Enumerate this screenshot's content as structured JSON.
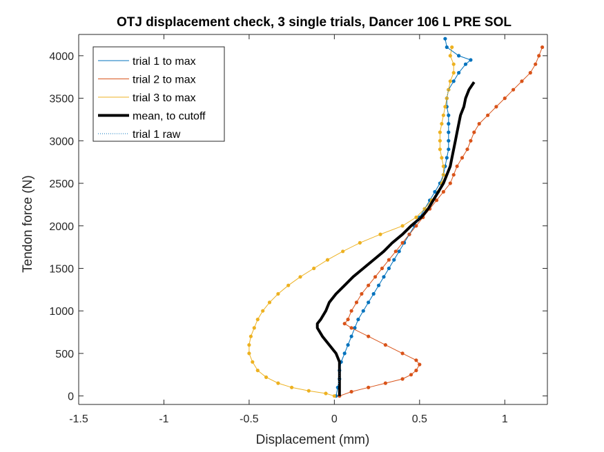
{
  "chart_data": {
    "type": "line",
    "title": "OTJ displacement check, 3 single trials, Dancer 106 L PRE SOL",
    "xlabel": "Displacement (mm)",
    "ylabel": "Tendon force (N)",
    "xlim": [
      -1.5,
      1.25
    ],
    "ylim": [
      -100,
      4250
    ],
    "xticks": [
      -1.5,
      -1,
      -0.5,
      0,
      0.5,
      1
    ],
    "xtick_labels": [
      "-1.5",
      "-1",
      "-0.5",
      "0",
      "0.5",
      "1"
    ],
    "yticks": [
      0,
      500,
      1000,
      1500,
      2000,
      2500,
      3000,
      3500,
      4000
    ],
    "ytick_labels": [
      "0",
      "500",
      "1000",
      "1500",
      "2000",
      "2500",
      "3000",
      "3500",
      "4000"
    ],
    "grid": false,
    "legend_position": "top-left",
    "series": [
      {
        "name": "trial 1 to max",
        "color": "#0072BD",
        "style": "solid-markers",
        "points": [
          [
            0.01,
            0
          ],
          [
            0.02,
            100
          ],
          [
            0.03,
            200
          ],
          [
            0.03,
            300
          ],
          [
            0.04,
            400
          ],
          [
            0.06,
            500
          ],
          [
            0.08,
            600
          ],
          [
            0.1,
            700
          ],
          [
            0.12,
            800
          ],
          [
            0.14,
            900
          ],
          [
            0.17,
            1000
          ],
          [
            0.2,
            1100
          ],
          [
            0.23,
            1200
          ],
          [
            0.26,
            1300
          ],
          [
            0.29,
            1400
          ],
          [
            0.32,
            1500
          ],
          [
            0.35,
            1600
          ],
          [
            0.38,
            1700
          ],
          [
            0.41,
            1800
          ],
          [
            0.44,
            1900
          ],
          [
            0.47,
            2000
          ],
          [
            0.5,
            2100
          ],
          [
            0.53,
            2200
          ],
          [
            0.56,
            2300
          ],
          [
            0.59,
            2400
          ],
          [
            0.62,
            2500
          ],
          [
            0.64,
            2600
          ],
          [
            0.65,
            2700
          ],
          [
            0.66,
            2800
          ],
          [
            0.67,
            2900
          ],
          [
            0.67,
            3000
          ],
          [
            0.67,
            3100
          ],
          [
            0.67,
            3200
          ],
          [
            0.67,
            3300
          ],
          [
            0.66,
            3400
          ],
          [
            0.66,
            3500
          ],
          [
            0.67,
            3600
          ],
          [
            0.7,
            3700
          ],
          [
            0.73,
            3800
          ],
          [
            0.77,
            3900
          ],
          [
            0.8,
            3950
          ],
          [
            0.73,
            4000
          ],
          [
            0.66,
            4100
          ],
          [
            0.65,
            4200
          ]
        ]
      },
      {
        "name": "trial 2 to max",
        "color": "#D95319",
        "style": "solid-markers",
        "points": [
          [
            0.03,
            0
          ],
          [
            0.1,
            50
          ],
          [
            0.2,
            100
          ],
          [
            0.3,
            150
          ],
          [
            0.4,
            200
          ],
          [
            0.45,
            250
          ],
          [
            0.48,
            300
          ],
          [
            0.5,
            370
          ],
          [
            0.48,
            420
          ],
          [
            0.4,
            500
          ],
          [
            0.3,
            600
          ],
          [
            0.2,
            700
          ],
          [
            0.1,
            800
          ],
          [
            0.06,
            850
          ],
          [
            0.08,
            900
          ],
          [
            0.1,
            1000
          ],
          [
            0.13,
            1100
          ],
          [
            0.16,
            1200
          ],
          [
            0.2,
            1300
          ],
          [
            0.24,
            1400
          ],
          [
            0.28,
            1500
          ],
          [
            0.32,
            1600
          ],
          [
            0.36,
            1700
          ],
          [
            0.4,
            1800
          ],
          [
            0.44,
            1900
          ],
          [
            0.48,
            2000
          ],
          [
            0.52,
            2100
          ],
          [
            0.56,
            2200
          ],
          [
            0.6,
            2300
          ],
          [
            0.64,
            2400
          ],
          [
            0.68,
            2500
          ],
          [
            0.7,
            2600
          ],
          [
            0.72,
            2700
          ],
          [
            0.75,
            2800
          ],
          [
            0.78,
            2900
          ],
          [
            0.8,
            3000
          ],
          [
            0.82,
            3100
          ],
          [
            0.85,
            3200
          ],
          [
            0.9,
            3300
          ],
          [
            0.95,
            3400
          ],
          [
            1.0,
            3500
          ],
          [
            1.05,
            3600
          ],
          [
            1.1,
            3700
          ],
          [
            1.15,
            3800
          ],
          [
            1.18,
            3900
          ],
          [
            1.2,
            4000
          ],
          [
            1.22,
            4100
          ]
        ]
      },
      {
        "name": "trial 3 to max",
        "color": "#EDB120",
        "style": "solid-markers",
        "points": [
          [
            0,
            0
          ],
          [
            -0.05,
            30
          ],
          [
            -0.15,
            60
          ],
          [
            -0.25,
            100
          ],
          [
            -0.33,
            150
          ],
          [
            -0.4,
            220
          ],
          [
            -0.45,
            300
          ],
          [
            -0.48,
            400
          ],
          [
            -0.5,
            500
          ],
          [
            -0.5,
            600
          ],
          [
            -0.49,
            700
          ],
          [
            -0.47,
            800
          ],
          [
            -0.45,
            900
          ],
          [
            -0.42,
            1000
          ],
          [
            -0.38,
            1100
          ],
          [
            -0.33,
            1200
          ],
          [
            -0.27,
            1300
          ],
          [
            -0.2,
            1400
          ],
          [
            -0.12,
            1500
          ],
          [
            -0.04,
            1600
          ],
          [
            0.05,
            1700
          ],
          [
            0.15,
            1800
          ],
          [
            0.27,
            1900
          ],
          [
            0.4,
            2000
          ],
          [
            0.48,
            2100
          ],
          [
            0.53,
            2200
          ],
          [
            0.57,
            2300
          ],
          [
            0.61,
            2400
          ],
          [
            0.63,
            2500
          ],
          [
            0.64,
            2600
          ],
          [
            0.64,
            2700
          ],
          [
            0.63,
            2800
          ],
          [
            0.62,
            2900
          ],
          [
            0.62,
            3000
          ],
          [
            0.62,
            3100
          ],
          [
            0.63,
            3200
          ],
          [
            0.64,
            3300
          ],
          [
            0.65,
            3400
          ],
          [
            0.66,
            3500
          ],
          [
            0.67,
            3600
          ],
          [
            0.68,
            3700
          ],
          [
            0.7,
            3800
          ],
          [
            0.7,
            3900
          ],
          [
            0.68,
            4000
          ],
          [
            0.69,
            4100
          ]
        ]
      },
      {
        "name": "mean, to cutoff",
        "color": "#000000",
        "style": "thick-line",
        "points": [
          [
            0.03,
            0
          ],
          [
            0.03,
            100
          ],
          [
            0.03,
            200
          ],
          [
            0.03,
            300
          ],
          [
            0.03,
            400
          ],
          [
            0.01,
            500
          ],
          [
            -0.03,
            600
          ],
          [
            -0.07,
            700
          ],
          [
            -0.1,
            800
          ],
          [
            -0.1,
            850
          ],
          [
            -0.08,
            900
          ],
          [
            -0.05,
            1000
          ],
          [
            -0.03,
            1100
          ],
          [
            0.01,
            1200
          ],
          [
            0.06,
            1300
          ],
          [
            0.11,
            1400
          ],
          [
            0.17,
            1500
          ],
          [
            0.23,
            1600
          ],
          [
            0.29,
            1700
          ],
          [
            0.34,
            1800
          ],
          [
            0.4,
            1900
          ],
          [
            0.45,
            2000
          ],
          [
            0.51,
            2100
          ],
          [
            0.55,
            2200
          ],
          [
            0.58,
            2300
          ],
          [
            0.61,
            2400
          ],
          [
            0.64,
            2500
          ],
          [
            0.66,
            2600
          ],
          [
            0.68,
            2700
          ],
          [
            0.69,
            2800
          ],
          [
            0.7,
            2900
          ],
          [
            0.71,
            3000
          ],
          [
            0.72,
            3100
          ],
          [
            0.73,
            3200
          ],
          [
            0.74,
            3300
          ],
          [
            0.76,
            3400
          ],
          [
            0.77,
            3500
          ],
          [
            0.79,
            3600
          ],
          [
            0.82,
            3690
          ]
        ]
      },
      {
        "name": "trial 1 raw",
        "color": "#0072BD",
        "style": "dotted",
        "points": [
          [
            0.01,
            0
          ],
          [
            0.02,
            100
          ],
          [
            0.03,
            200
          ],
          [
            0.03,
            300
          ],
          [
            0.04,
            400
          ],
          [
            0.06,
            500
          ],
          [
            0.08,
            600
          ],
          [
            0.1,
            700
          ],
          [
            0.12,
            800
          ],
          [
            0.14,
            900
          ],
          [
            0.17,
            1000
          ],
          [
            0.2,
            1100
          ],
          [
            0.23,
            1200
          ],
          [
            0.26,
            1300
          ],
          [
            0.29,
            1400
          ],
          [
            0.32,
            1500
          ],
          [
            0.35,
            1600
          ],
          [
            0.38,
            1700
          ],
          [
            0.41,
            1800
          ],
          [
            0.44,
            1900
          ],
          [
            0.47,
            2000
          ],
          [
            0.5,
            2100
          ],
          [
            0.53,
            2200
          ],
          [
            0.56,
            2300
          ],
          [
            0.59,
            2400
          ],
          [
            0.62,
            2500
          ],
          [
            0.64,
            2600
          ],
          [
            0.65,
            2700
          ],
          [
            0.66,
            2800
          ],
          [
            0.67,
            2900
          ],
          [
            0.67,
            3000
          ],
          [
            0.67,
            3100
          ],
          [
            0.67,
            3200
          ],
          [
            0.67,
            3300
          ],
          [
            0.66,
            3400
          ],
          [
            0.66,
            3500
          ],
          [
            0.67,
            3600
          ],
          [
            0.7,
            3700
          ],
          [
            0.73,
            3800
          ],
          [
            0.77,
            3900
          ],
          [
            0.8,
            3950
          ],
          [
            0.73,
            4000
          ],
          [
            0.66,
            4100
          ],
          [
            0.65,
            4200
          ]
        ]
      }
    ]
  }
}
